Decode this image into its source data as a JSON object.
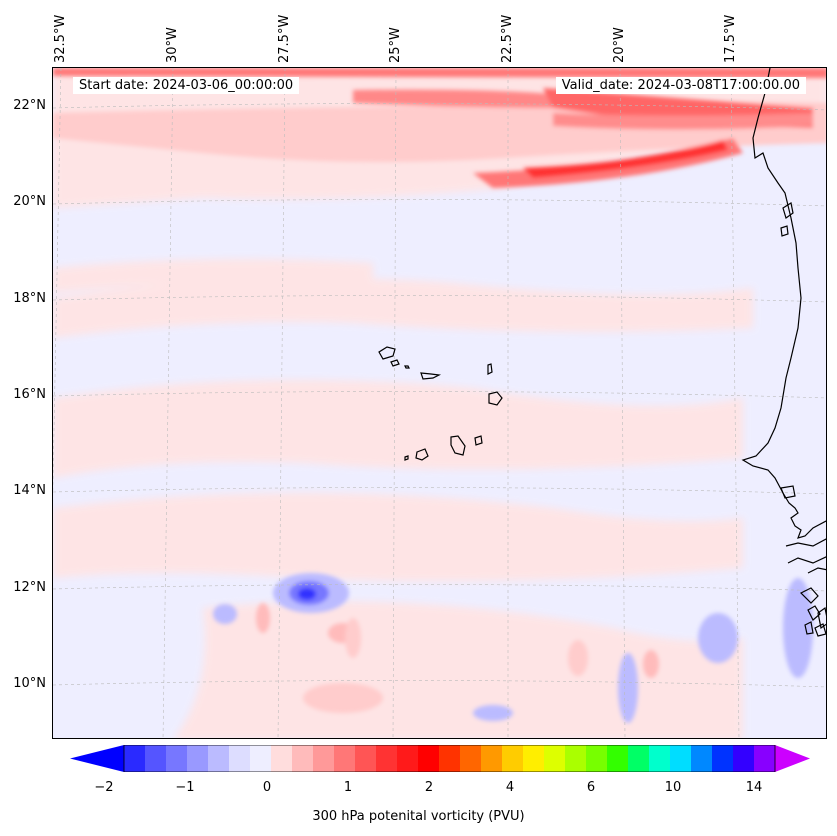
{
  "header": {
    "start_date": "Start date: 2024-03-06_00:00:00",
    "valid_date": "Valid_date: 2024-03-08T17:00:00.00"
  },
  "axes": {
    "lon_labels": [
      "32.5°W",
      "30°W",
      "27.5°W",
      "25°W",
      "22.5°W",
      "20°W",
      "17.5°W"
    ],
    "lat_labels": [
      "22°N",
      "20°N",
      "18°N",
      "16°N",
      "14°N",
      "12°N",
      "10°N"
    ]
  },
  "colorbar": {
    "label": "300 hPa potenital vorticity (PVU)",
    "ticks": [
      "−2",
      "−1",
      "0",
      "1",
      "2",
      "4",
      "6",
      "10",
      "14"
    ],
    "colors": [
      "#0000ff",
      "#2a2aff",
      "#5555ff",
      "#7777ff",
      "#9999ff",
      "#bbbbff",
      "#ddddff",
      "#eeeeff",
      "#ffdddd",
      "#ffbbbb",
      "#ff9999",
      "#ff7777",
      "#ff5555",
      "#ff3333",
      "#ff1a1a",
      "#ff0000",
      "#ff3300",
      "#ff6600",
      "#ff9900",
      "#ffcc00",
      "#ffee00",
      "#ddff00",
      "#aaff00",
      "#77ff00",
      "#33ff00",
      "#00ff66",
      "#00ffcc",
      "#00ddff",
      "#0088ff",
      "#0033ff",
      "#3300ff",
      "#8800ff",
      "#bb00ff"
    ]
  },
  "colors": {
    "background": "#eeeeff",
    "light_red": "#ffe4e4",
    "mid_red": "#ffbbbb",
    "strong_red": "#ff3333",
    "blue": "#7777ff"
  }
}
